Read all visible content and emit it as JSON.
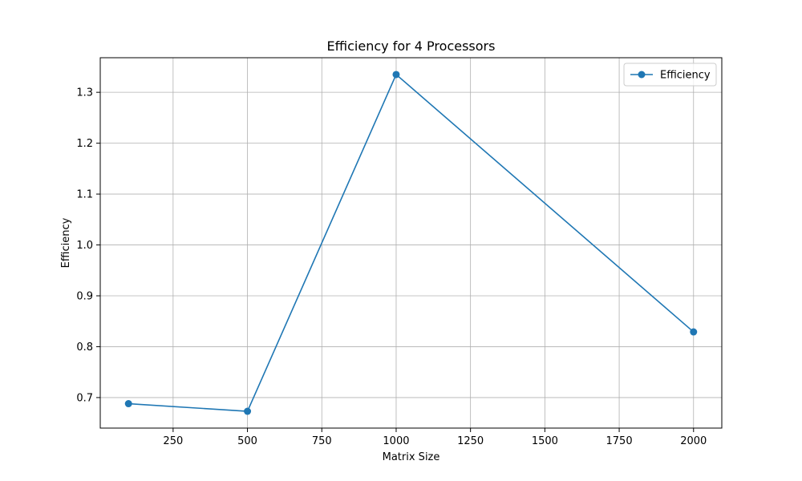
{
  "chart_data": {
    "type": "line",
    "title": "Efficiency for 4 Processors",
    "xlabel": "Matrix Size",
    "ylabel": "Efficiency",
    "x": [
      100,
      500,
      1000,
      2000
    ],
    "series": [
      {
        "name": "Efficiency",
        "values": [
          0.688,
          0.673,
          1.335,
          0.829
        ],
        "color": "#1f77b4",
        "marker": "circle"
      }
    ],
    "xlim": [
      5,
      2095
    ],
    "ylim": [
      0.64,
      1.368
    ],
    "xticks": [
      250,
      500,
      750,
      1000,
      1250,
      1500,
      1750,
      2000
    ],
    "yticks": [
      0.7,
      0.8,
      0.9,
      1.0,
      1.1,
      1.2,
      1.3
    ],
    "xtick_labels": [
      "250",
      "500",
      "750",
      "1000",
      "1250",
      "1500",
      "1750",
      "2000"
    ],
    "ytick_labels": [
      "0.7",
      "0.8",
      "0.9",
      "1.0",
      "1.1",
      "1.2",
      "1.3"
    ],
    "grid": true,
    "legend_position": "top-right",
    "grid_color": "#b0b0b0",
    "axis_color": "#000000"
  }
}
